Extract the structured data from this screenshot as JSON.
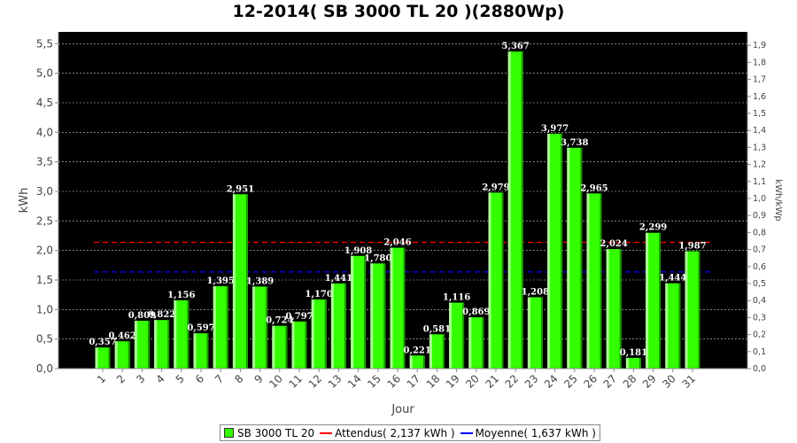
{
  "chart_data": {
    "type": "bar",
    "title": "12-2014( SB 3000 TL 20 )(2880Wp)",
    "xlabel": "Jour",
    "ylabel": "kWh",
    "y2label": "kWh/kWp",
    "ylim": [
      0,
      5.7
    ],
    "y2lim": [
      0,
      1.979
    ],
    "yticks": [
      "0,0",
      "0,5",
      "1,0",
      "1,5",
      "2,0",
      "2,5",
      "3,0",
      "3,5",
      "4,0",
      "4,5",
      "5,0",
      "5,5"
    ],
    "y2ticks": [
      "0,0",
      "0,1",
      "0,2",
      "0,3",
      "0,4",
      "0,5",
      "0,6",
      "0,7",
      "0,8",
      "0,9",
      "1,0",
      "1,1",
      "1,2",
      "1,3",
      "1,4",
      "1,5",
      "1,6",
      "1,7",
      "1,8",
      "1,9"
    ],
    "categories": [
      "1",
      "2",
      "3",
      "4",
      "5",
      "6",
      "7",
      "8",
      "9",
      "10",
      "11",
      "12",
      "13",
      "14",
      "15",
      "16",
      "17",
      "18",
      "19",
      "20",
      "21",
      "22",
      "23",
      "24",
      "25",
      "26",
      "27",
      "28",
      "29",
      "30",
      "31"
    ],
    "series": [
      {
        "name": "SB 3000 TL 20",
        "values": [
          0.357,
          0.462,
          0.809,
          0.822,
          1.156,
          0.597,
          1.395,
          2.951,
          1.389,
          0.724,
          0.797,
          1.17,
          1.441,
          1.908,
          1.78,
          2.046,
          0.221,
          0.581,
          1.116,
          0.869,
          2.979,
          5.367,
          1.208,
          3.977,
          3.738,
          2.965,
          2.024,
          0.181,
          2.299,
          1.444,
          1.987
        ],
        "labels": [
          "0,357",
          "0,462",
          "0,809",
          "0,822",
          "1,156",
          "0,597",
          "1,395",
          "2,951",
          "1,389",
          "0,724",
          "0,797",
          "1,170",
          "1,441",
          "1,908",
          "1,780",
          "2,046",
          "0,221",
          "0,581",
          "1,116",
          "0,869",
          "2,979",
          "5,367",
          "1,208",
          "3,977",
          "3,738",
          "2,965",
          "2,024",
          "0,181",
          "2,299",
          "1,444",
          "1,987"
        ],
        "color": "#33ff00"
      }
    ],
    "reference_lines": [
      {
        "name": "Attendus",
        "value": 2.137,
        "color": "#ff0000",
        "style": "dashed"
      },
      {
        "name": "Moyenne",
        "value": 1.637,
        "color": "#0000ff",
        "style": "dashed"
      }
    ],
    "grid": true,
    "background": "#000000",
    "legend_position": "bottom"
  },
  "legend": {
    "bar": "SB 3000 TL 20",
    "expected": "Attendus( 2,137 kWh )",
    "average": "Moyenne( 1,637 kWh )"
  }
}
